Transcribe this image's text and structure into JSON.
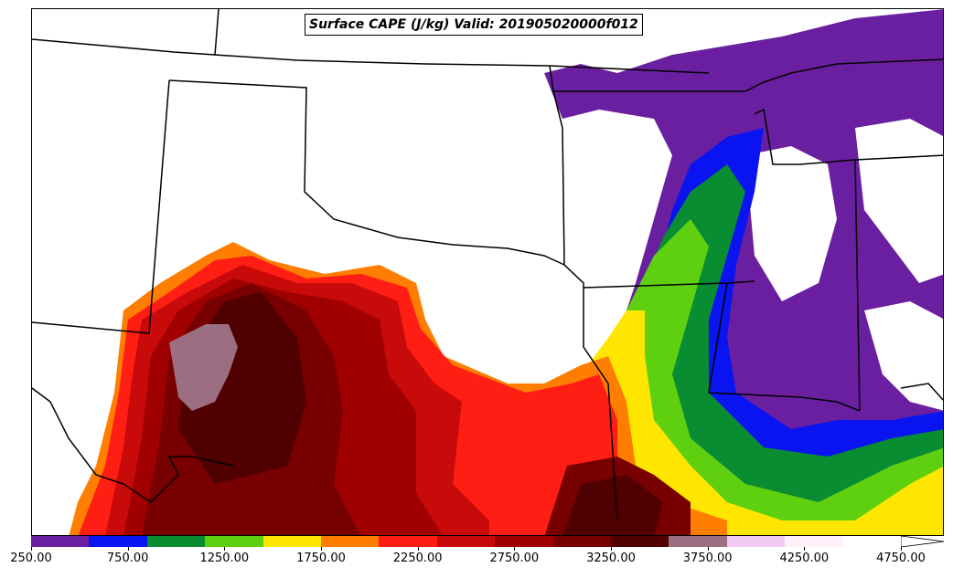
{
  "title": "Surface CAPE (J/kg) Valid: 201905020000f012",
  "colorbar": {
    "colors": [
      "#6a1fa0",
      "#0a14f0",
      "#0a8c32",
      "#5fd010",
      "#ffe600",
      "#ff7d00",
      "#ff1e14",
      "#c80a0a",
      "#a00000",
      "#780000",
      "#500000",
      "#9b6e82",
      "#f0c8f0",
      "#fff0fa",
      "#ffffff"
    ],
    "extend_color": "#ffffff",
    "ticks": [
      "250.00",
      "750.00",
      "1250.00",
      "1750.00",
      "2250.00",
      "2750.00",
      "3250.00",
      "3750.00",
      "4250.00",
      "4750.00"
    ]
  },
  "legend": {
    "units": "J/kg",
    "levels_min": 250,
    "levels_max": 4750,
    "step": 250
  }
}
